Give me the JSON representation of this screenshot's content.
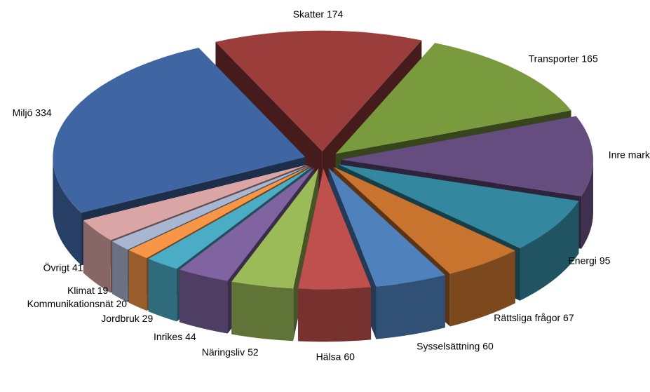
{
  "chart_data": {
    "type": "pie",
    "categories": [
      "Skatter",
      "Transporter",
      "Inre marknad",
      "Energi",
      "Rättsliga frågor",
      "Sysselsättning",
      "Hälsa",
      "Näringsliv",
      "Inrikes",
      "Jordbruk",
      "Kommunikationsnät",
      "Klimat",
      "Övrigt",
      "Miljö"
    ],
    "values": [
      174,
      165,
      140,
      95,
      67,
      60,
      60,
      52,
      44,
      29,
      20,
      19,
      41,
      334
    ],
    "colors": [
      "#9b3d3b",
      "#7a9a3e",
      "#654d80",
      "#33879e",
      "#c8742f",
      "#4f81bd",
      "#c0504d",
      "#9bbb59",
      "#8064a2",
      "#4bacc6",
      "#f79646",
      "#a9b6d2",
      "#d9a6a5",
      "#3f66a3"
    ]
  }
}
